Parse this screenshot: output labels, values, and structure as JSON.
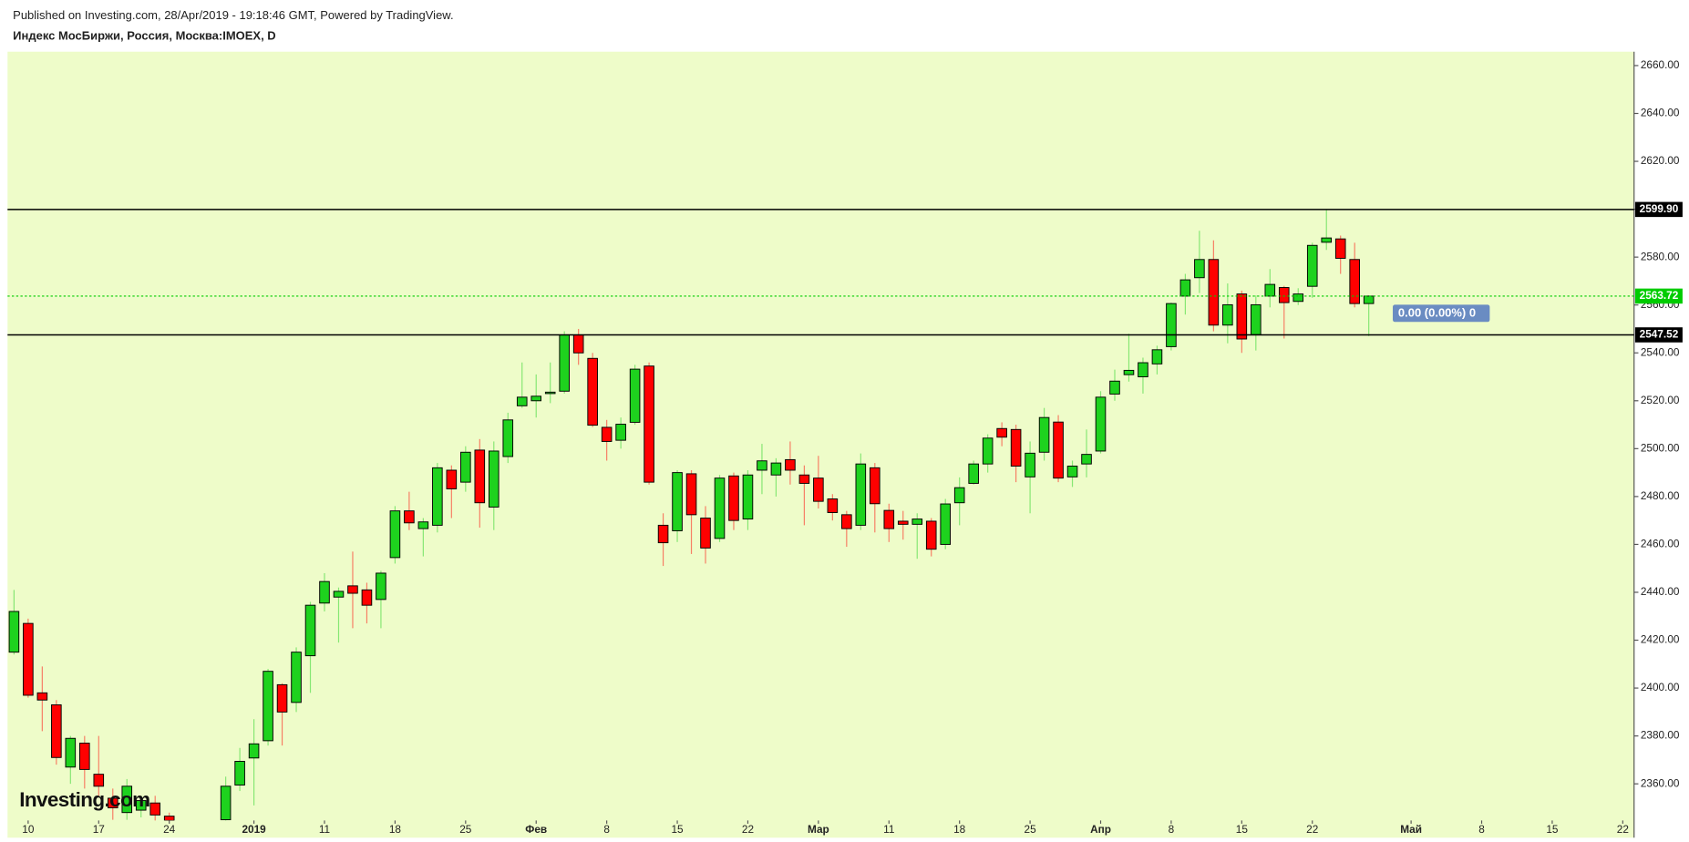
{
  "header": {
    "published": "Published on Investing.com, 28/Apr/2019 - 19:18:46 GMT, Powered by TradingView.",
    "symbol": "Индекс МосБиржи, Россия, Москва:IMOEX, D"
  },
  "chart_data": {
    "type": "candlestick",
    "background": "#eefcc9",
    "up_color": "#1ed21e",
    "down_color": "#ff0000",
    "x": [
      0,
      1,
      2,
      3,
      4,
      5,
      6,
      7,
      8,
      9,
      10,
      11,
      15,
      16,
      17,
      18,
      19,
      20,
      21,
      22,
      23,
      24,
      25,
      26,
      27,
      28,
      29,
      30,
      31,
      32,
      33,
      34,
      35,
      36,
      37,
      38,
      39,
      40,
      41,
      42,
      43,
      44,
      45,
      46,
      47,
      48,
      49,
      50,
      51,
      52,
      53,
      54,
      55,
      56,
      57,
      58,
      59,
      60,
      61,
      62,
      63,
      64,
      65,
      66,
      67,
      68,
      69,
      70,
      71,
      72,
      73,
      74,
      75,
      76,
      77,
      78,
      79,
      80,
      81,
      82,
      83,
      84,
      85,
      86,
      87,
      88,
      89,
      90,
      91,
      92,
      93,
      94,
      95,
      96
    ],
    "open": [
      2415,
      2427,
      2398,
      2393,
      2367,
      2377,
      2364,
      2354,
      2348,
      2349,
      2352,
      2346.5,
      2345,
      2359.5,
      2370.8,
      2378,
      2401.4,
      2394,
      2413.5,
      2435.5,
      2438,
      2442.7,
      2441,
      2437,
      2454.5,
      2474,
      2466.6,
      2468,
      2491,
      2486,
      2499.4,
      2475.6,
      2496.7,
      2517.9,
      2520,
      2523,
      2524,
      2547.5,
      2537.7,
      2508.9,
      2503.5,
      2511,
      2534.5,
      2468,
      2465.7,
      2489.5,
      2471,
      2462.5,
      2488.6,
      2470.6,
      2491,
      2489,
      2495.4,
      2489,
      2487.7,
      2479,
      2472.4,
      2468,
      2492,
      2474.2,
      2469.7,
      2468.4,
      2469.7,
      2460,
      2477.4,
      2485.5,
      2493.6,
      2508.4,
      2508,
      2488.2,
      2498.5,
      2511.1,
      2488.2,
      2493.6,
      2499,
      2522.8,
      2530.9,
      2530,
      2535.4,
      2542.6,
      2563.7,
      2571.4,
      2579,
      2551.6,
      2564.6,
      2547.6,
      2563.7,
      2567.3,
      2561.5,
      2567.8,
      2586.2,
      2587.6,
      2579,
      2560.6
    ],
    "high": [
      2441,
      2429,
      2409,
      2395,
      2380,
      2380,
      2380,
      2358,
      2362,
      2355,
      2355,
      2348,
      2363,
      2375,
      2387,
      2408,
      2402,
      2417,
      2436,
      2448,
      2442,
      2457,
      2444,
      2449,
      2476,
      2482,
      2471,
      2494,
      2493,
      2501,
      2504,
      2503,
      2515,
      2536,
      2531,
      2536,
      2549,
      2550,
      2540,
      2512,
      2513,
      2535,
      2536,
      2473,
      2491,
      2491,
      2476,
      2489,
      2490,
      2491,
      2502,
      2496,
      2503,
      2493,
      2497,
      2481,
      2474,
      2498,
      2494,
      2477,
      2474,
      2473,
      2471,
      2479,
      2488,
      2495,
      2506,
      2511,
      2510,
      2503,
      2517,
      2514,
      2495,
      2508,
      2524,
      2533,
      2548,
      2538,
      2543,
      2561,
      2573,
      2591,
      2587,
      2569,
      2566,
      2564,
      2575,
      2568,
      2567,
      2586,
      2599.9,
      2589,
      2586,
      2564
    ],
    "low": [
      2414,
      2396,
      2382,
      2368,
      2360,
      2358,
      2355,
      2345,
      2345,
      2346,
      2343,
      2342,
      2338,
      2357,
      2351,
      2376,
      2376,
      2390,
      2398,
      2432,
      2419,
      2425,
      2427,
      2425,
      2452,
      2466,
      2455,
      2465,
      2471,
      2482,
      2467,
      2466,
      2494,
      2517,
      2513,
      2519,
      2523,
      2535,
      2509,
      2495,
      2500,
      2510,
      2485,
      2451,
      2461,
      2456,
      2452,
      2461,
      2466,
      2466,
      2481,
      2480,
      2485,
      2468,
      2475,
      2470,
      2459,
      2466,
      2465,
      2461,
      2462,
      2454,
      2455,
      2458,
      2468,
      2485,
      2490,
      2501,
      2486,
      2473,
      2495,
      2486,
      2484,
      2488,
      2498,
      2520,
      2528,
      2523,
      2531,
      2541,
      2556,
      2565,
      2549,
      2544,
      2540,
      2541,
      2559,
      2546,
      2560,
      2563,
      2583,
      2573,
      2559,
      2547
    ],
    "close": [
      2432,
      2397,
      2395,
      2371,
      2379,
      2366,
      2359,
      2350,
      2359,
      2353,
      2347,
      2344.7,
      2359,
      2369.4,
      2376.7,
      2407,
      2390,
      2415,
      2434.6,
      2444.5,
      2440.4,
      2439.6,
      2434.6,
      2448,
      2474,
      2469,
      2469.4,
      2492,
      2483.2,
      2498.5,
      2477.4,
      2499,
      2512,
      2521.5,
      2521.9,
      2523.6,
      2547.5,
      2540,
      2509.8,
      2503,
      2510.2,
      2533.2,
      2486,
      2460.7,
      2490,
      2472.4,
      2458.5,
      2487.7,
      2470,
      2489,
      2494.9,
      2494,
      2491,
      2485.5,
      2478,
      2473.3,
      2466.6,
      2493.6,
      2477,
      2466.6,
      2468.4,
      2470.6,
      2458,
      2476.9,
      2483.7,
      2493.6,
      2504.4,
      2504.8,
      2492.7,
      2498.1,
      2513,
      2487.7,
      2492.7,
      2497.6,
      2521.5,
      2528.2,
      2532.7,
      2535.9,
      2541.3,
      2560.6,
      2570.5,
      2579,
      2551.6,
      2560.1,
      2545.8,
      2560.1,
      2568.6,
      2561,
      2564.6,
      2584.9,
      2588,
      2579.5,
      2560.6,
      2563.72
    ],
    "xlim": [
      -0.46,
      114.8
    ],
    "xticks": [
      {
        "value": 1,
        "label": "10"
      },
      {
        "value": 6,
        "label": "17"
      },
      {
        "value": 11,
        "label": "24"
      },
      {
        "value": 17,
        "label": "2019"
      },
      {
        "value": 22,
        "label": "11"
      },
      {
        "value": 27,
        "label": "18"
      },
      {
        "value": 32,
        "label": "25"
      },
      {
        "value": 37,
        "label": "Фев"
      },
      {
        "value": 42,
        "label": "8"
      },
      {
        "value": 47,
        "label": "15"
      },
      {
        "value": 52,
        "label": "22"
      },
      {
        "value": 57,
        "label": "Мар"
      },
      {
        "value": 62,
        "label": "11"
      },
      {
        "value": 67,
        "label": "18"
      },
      {
        "value": 72,
        "label": "25"
      },
      {
        "value": 77,
        "label": "Апр"
      },
      {
        "value": 82,
        "label": "8"
      },
      {
        "value": 87,
        "label": "15"
      },
      {
        "value": 92,
        "label": "22"
      },
      {
        "value": 99,
        "label": "Май"
      },
      {
        "value": 104,
        "label": "8"
      },
      {
        "value": 109,
        "label": "15"
      },
      {
        "value": 114,
        "label": "22"
      }
    ],
    "ylim": [
      2344.7,
      2665.8
    ],
    "yticks": [
      {
        "value": 2360,
        "label": "2360.00"
      },
      {
        "value": 2380,
        "label": "2380.00"
      },
      {
        "value": 2400,
        "label": "2400.00"
      },
      {
        "value": 2420,
        "label": "2420.00"
      },
      {
        "value": 2440,
        "label": "2440.00"
      },
      {
        "value": 2460,
        "label": "2460.00"
      },
      {
        "value": 2480,
        "label": "2480.00"
      },
      {
        "value": 2500,
        "label": "2500.00"
      },
      {
        "value": 2520,
        "label": "2520.00"
      },
      {
        "value": 2540,
        "label": "2540.00"
      },
      {
        "value": 2560,
        "label": "2560.00"
      },
      {
        "value": 2580,
        "label": "2580.00"
      },
      {
        "value": 2600,
        "label": "2600.00"
      },
      {
        "value": 2620,
        "label": "2620.00"
      },
      {
        "value": 2640,
        "label": "2640.00"
      },
      {
        "value": 2660,
        "label": "2660.00"
      }
    ],
    "hlines": [
      {
        "value": 2599.9,
        "label": "2599.90",
        "color": "#000000",
        "style": "solid"
      },
      {
        "value": 2547.52,
        "label": "2547.52",
        "color": "#000000",
        "style": "solid"
      },
      {
        "value": 2563.72,
        "label": "2563.72",
        "color": "#00cc00",
        "style": "dotted"
      }
    ],
    "change_label": "0.00 (0.00%) 0",
    "watermark": "Investing.com"
  }
}
